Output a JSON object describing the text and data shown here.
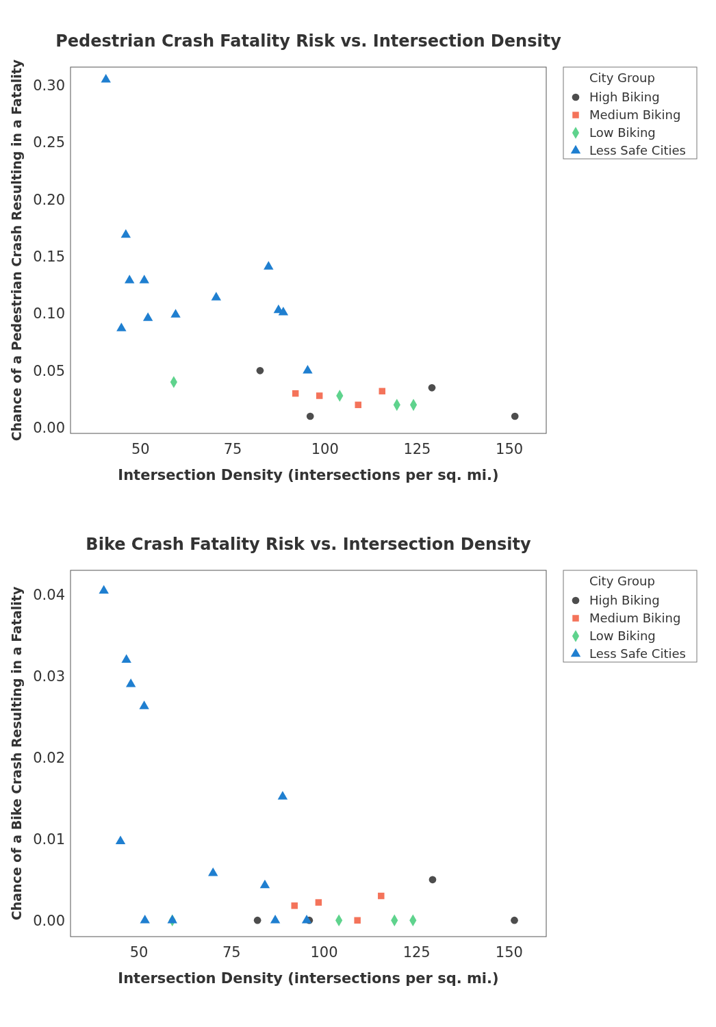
{
  "chart_data": [
    {
      "type": "scatter",
      "title": "Pedestrian Crash Fatality Risk vs. Intersection Density",
      "xlabel": "Intersection Density (intersections per sq. mi.)",
      "ylabel": "Chance of a Pedestrian Crash Resulting in a Fatality",
      "legend_title": "City Group",
      "legend": "top right",
      "grid": false,
      "xlim": [
        31,
        160
      ],
      "xticks": [
        50,
        75,
        100,
        125,
        150
      ],
      "ylim": [
        -0.005,
        0.316
      ],
      "yticks": [
        {
          "value": 0,
          "label": "0.00"
        },
        {
          "value": 0.05,
          "label": "0.05"
        },
        {
          "value": 0.1,
          "label": "0.10"
        },
        {
          "value": 0.15,
          "label": "0.15"
        },
        {
          "value": 0.2,
          "label": "0.20"
        },
        {
          "value": 0.25,
          "label": "0.25"
        },
        {
          "value": 0.3,
          "label": "0.30"
        }
      ],
      "series": [
        {
          "name": "High Biking",
          "color": "#4d4d4d",
          "marker": "circle",
          "x": [
            82.4,
            96,
            129,
            151.5
          ],
          "values": [
            0.05,
            0.01,
            0.035,
            0.01
          ]
        },
        {
          "name": "Medium Biking",
          "color": "#f4735a",
          "marker": "square",
          "x": [
            92,
            98.5,
            109,
            115.5
          ],
          "values": [
            0.03,
            0.028,
            0.02,
            0.032
          ]
        },
        {
          "name": "Low Biking",
          "color": "#5fd38d",
          "marker": "diamond",
          "x": [
            59,
            104,
            119.5,
            124
          ],
          "values": [
            0.04,
            0.028,
            0.02,
            0.02
          ]
        },
        {
          "name": "Less Safe Cities",
          "color": "#1f7fd0",
          "marker": "triangle",
          "x": [
            40.6,
            46,
            47,
            51,
            44.8,
            52,
            59.5,
            70.5,
            84.7,
            87.4,
            88.7,
            95.3
          ],
          "values": [
            0.305,
            0.169,
            0.129,
            0.129,
            0.087,
            0.096,
            0.099,
            0.114,
            0.141,
            0.103,
            0.101,
            0.05
          ]
        }
      ]
    },
    {
      "type": "scatter",
      "title": "Bike Crash Fatality Risk vs. Intersection Density",
      "xlabel": "Intersection Density (intersections per sq. mi.)",
      "ylabel": "Chance of a Bike Crash Resulting in a Fatality",
      "legend_title": "City Group",
      "legend": "top right",
      "grid": false,
      "xlim": [
        31.5,
        160
      ],
      "xticks": [
        50,
        75,
        100,
        125,
        150
      ],
      "ylim": [
        -0.002,
        0.043
      ],
      "yticks": [
        {
          "value": 0,
          "label": "0.00"
        },
        {
          "value": 0.01,
          "label": "0.01"
        },
        {
          "value": 0.02,
          "label": "0.02"
        },
        {
          "value": 0.03,
          "label": "0.03"
        },
        {
          "value": 0.04,
          "label": "0.04"
        }
      ],
      "series": [
        {
          "name": "High Biking",
          "color": "#4d4d4d",
          "marker": "circle",
          "x": [
            82,
            96,
            129.3,
            151.4
          ],
          "values": [
            0,
            0,
            0.005,
            0
          ]
        },
        {
          "name": "Medium Biking",
          "color": "#f4735a",
          "marker": "square",
          "x": [
            92,
            98.5,
            109,
            115.4
          ],
          "values": [
            0.0018,
            0.0022,
            0,
            0.003
          ]
        },
        {
          "name": "Low Biking",
          "color": "#5fd38d",
          "marker": "diamond",
          "x": [
            59,
            104,
            119,
            124
          ],
          "values": [
            0,
            0,
            0,
            0
          ]
        },
        {
          "name": "Less Safe Cities",
          "color": "#1f7fd0",
          "marker": "triangle",
          "x": [
            40.5,
            46.6,
            47.8,
            51.4,
            45,
            51.6,
            59,
            70,
            84,
            88.8,
            86.8,
            95.3
          ],
          "values": [
            0.0405,
            0.032,
            0.029,
            0.0263,
            0.0097,
            0,
            0,
            0.0058,
            0.0043,
            0.0152,
            0,
            0
          ]
        }
      ]
    }
  ]
}
